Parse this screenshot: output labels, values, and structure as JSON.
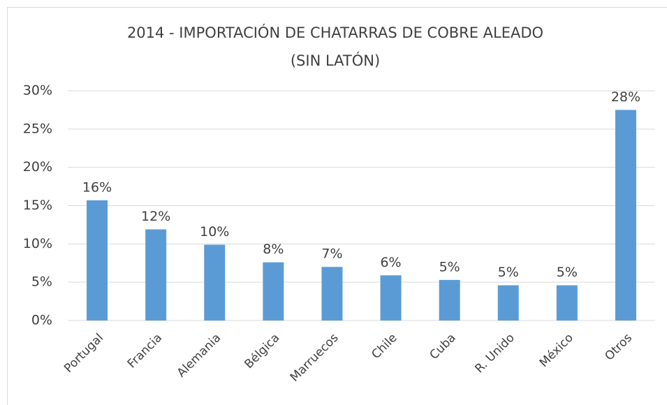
{
  "chart_data": {
    "type": "bar",
    "title": [
      "2014 - IMPORTACIÓN DE CHATARRAS DE COBRE ALEADO",
      "(SIN LATÓN)"
    ],
    "categories": [
      "Portugal",
      "Francia",
      "Alemania",
      "Bélgica",
      "Marruecos",
      "Chile",
      "Cuba",
      "R. Unido",
      "México",
      "Otros"
    ],
    "values": [
      15.7,
      11.9,
      9.9,
      7.6,
      7.0,
      5.9,
      5.3,
      4.6,
      4.6,
      27.5
    ],
    "value_labels": [
      "16%",
      "12%",
      "10%",
      "8%",
      "7%",
      "6%",
      "5%",
      "5%",
      "5%",
      "28%"
    ],
    "color": "#5b9bd5",
    "ylim": [
      0,
      30
    ],
    "yticks": [
      {
        "value": 0,
        "label": "0%"
      },
      {
        "value": 5,
        "label": "5%"
      },
      {
        "value": 10,
        "label": "10%"
      },
      {
        "value": 15,
        "label": "15%"
      },
      {
        "value": 20,
        "label": "20%"
      },
      {
        "value": 25,
        "label": "25%"
      },
      {
        "value": 30,
        "label": "30%"
      }
    ],
    "grid": true
  }
}
